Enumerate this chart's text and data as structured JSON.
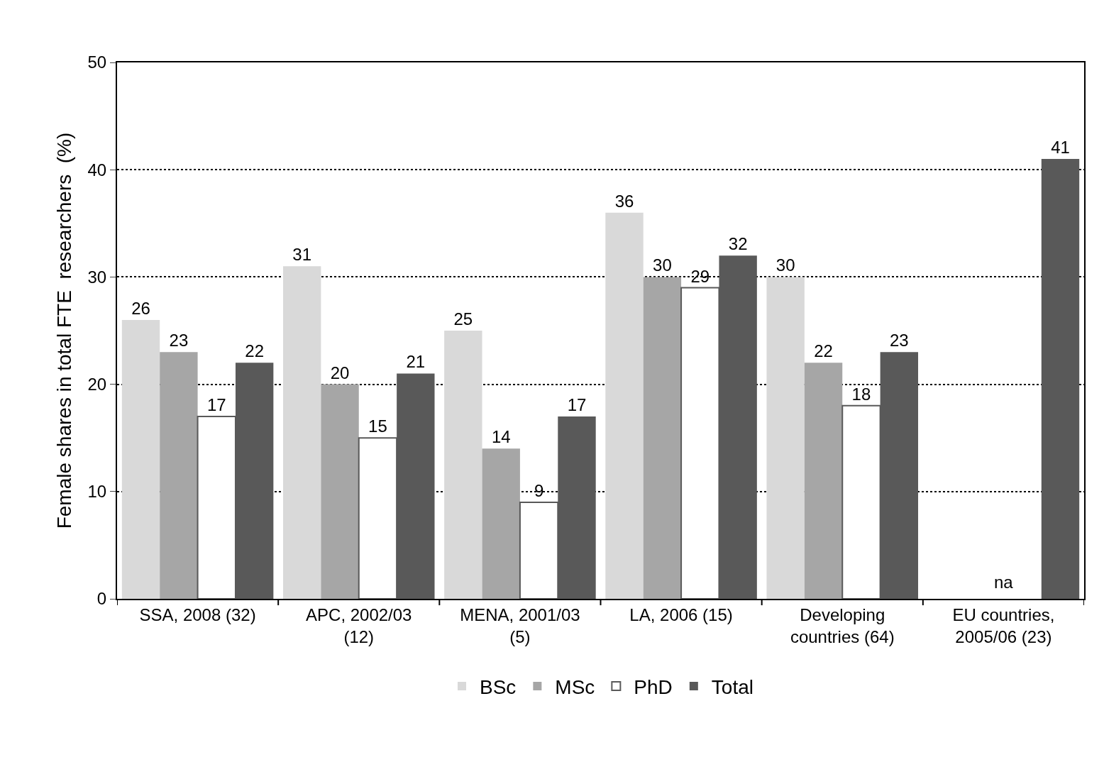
{
  "chart_data": {
    "type": "bar",
    "ylabel": "Female shares in total FTE  researchers  (%)",
    "categories": [
      "SSA, 2008 (32)",
      "APC, 2002/03 (12)",
      "MENA, 2001/03 (5)",
      "LA, 2006 (15)",
      "Developing countries (64)",
      "EU countries, 2005/06 (23)"
    ],
    "series": [
      {
        "name": "BSc",
        "color": "#d9d9d9",
        "values": [
          26,
          31,
          25,
          36,
          30,
          null
        ]
      },
      {
        "name": "MSc",
        "color": "#a6a6a6",
        "values": [
          23,
          20,
          14,
          30,
          22,
          null
        ]
      },
      {
        "name": "PhD",
        "color": "#ffffff",
        "values": [
          17,
          15,
          9,
          29,
          18,
          null
        ]
      },
      {
        "name": "Total",
        "color": "#595959",
        "values": [
          22,
          21,
          17,
          32,
          23,
          41
        ]
      }
    ],
    "ylim": [
      0,
      50
    ],
    "yticks": [
      0,
      10,
      20,
      30,
      40,
      50
    ],
    "grid": "y",
    "legend": "bottom",
    "data_labels": true,
    "annotations": [
      "na"
    ]
  }
}
